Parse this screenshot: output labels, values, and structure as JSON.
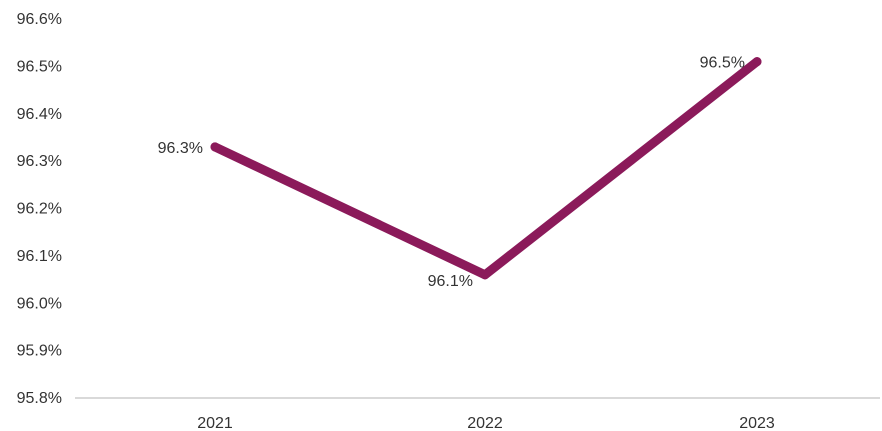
{
  "chart_data": {
    "type": "line",
    "title": "",
    "xlabel": "",
    "ylabel": "",
    "categories": [
      "2021",
      "2022",
      "2023"
    ],
    "series": [
      {
        "values": [
          96.33,
          96.06,
          96.51
        ],
        "data_labels": [
          "96.3%",
          "96.1%",
          "96.5%"
        ],
        "color": "#8B1A5A"
      }
    ],
    "ylim": [
      95.8,
      96.6
    ],
    "y_ticks": [
      95.8,
      95.9,
      96.0,
      96.1,
      96.2,
      96.3,
      96.4,
      96.5,
      96.6
    ],
    "y_tick_labels": [
      "95.8%",
      "95.9%",
      "96.0%",
      "96.1%",
      "96.2%",
      "96.3%",
      "96.4%",
      "96.5%",
      "96.6%"
    ],
    "grid": false,
    "legend": "none",
    "axis_color": "#d9d9d9"
  }
}
